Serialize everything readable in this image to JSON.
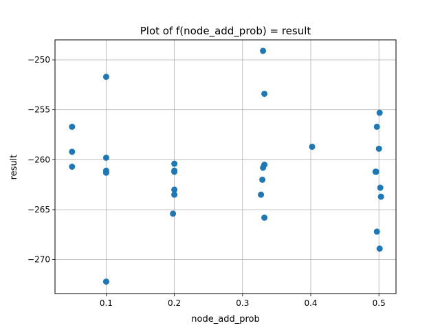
{
  "chart_data": {
    "type": "scatter",
    "title": "Plot of f(node_add_prob) = result",
    "xlabel": "node_add_prob",
    "ylabel": "result",
    "xlim": [
      0.025,
      0.525
    ],
    "ylim": [
      -273.4,
      -248.0
    ],
    "xticks": [
      0.1,
      0.2,
      0.3,
      0.4,
      0.5
    ],
    "xtick_labels": [
      "0.1",
      "0.2",
      "0.3",
      "0.4",
      "0.5"
    ],
    "yticks": [
      -270,
      -265,
      -260,
      -255,
      -250
    ],
    "ytick_labels": [
      "−270",
      "−265",
      "−260",
      "−255",
      "−250"
    ],
    "grid": true,
    "marker_color": "#1f77b4",
    "series": [
      {
        "x": [
          0.05,
          0.05,
          0.05,
          0.1,
          0.1,
          0.1,
          0.1,
          0.1,
          0.2,
          0.2,
          0.2,
          0.2,
          0.2,
          0.198,
          0.33,
          0.332,
          0.332,
          0.33,
          0.329,
          0.327,
          0.332,
          0.402,
          0.501,
          0.497,
          0.5,
          0.495,
          0.496,
          0.502,
          0.503,
          0.497,
          0.501
        ],
        "y": [
          -256.7,
          -259.2,
          -260.7,
          -251.7,
          -259.8,
          -261.1,
          -261.3,
          -272.2,
          -260.4,
          -261.1,
          -261.2,
          -263.0,
          -263.5,
          -265.4,
          -249.1,
          -253.4,
          -260.5,
          -260.8,
          -262.0,
          -263.5,
          -265.8,
          -258.7,
          -255.3,
          -256.7,
          -258.9,
          -261.2,
          -261.2,
          -262.8,
          -263.7,
          -267.2,
          -268.9
        ]
      }
    ]
  }
}
